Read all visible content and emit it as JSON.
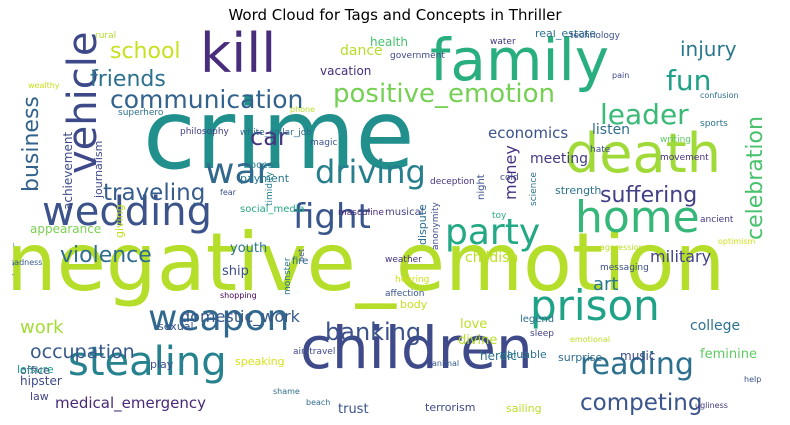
{
  "chart_data": {
    "type": "wordcloud",
    "title": "Word Cloud for Tags and Concepts in Thriller",
    "words": [
      {
        "text": "crime",
        "color": "#21908d"
      },
      {
        "text": "negative_emotion",
        "color": "#b5de2b"
      },
      {
        "text": "children",
        "color": "#3e4a89"
      },
      {
        "text": "family",
        "color": "#29af7f"
      },
      {
        "text": "death",
        "color": "#a0da39"
      },
      {
        "text": "kill",
        "color": "#472d7b"
      },
      {
        "text": "prison",
        "color": "#1fa287"
      },
      {
        "text": "home",
        "color": "#35b779"
      },
      {
        "text": "wedding",
        "color": "#3b528b"
      },
      {
        "text": "vehicle",
        "color": "#3e4989"
      },
      {
        "text": "stealing",
        "color": "#26828e"
      },
      {
        "text": "war",
        "color": "#31688e"
      },
      {
        "text": "weapon",
        "color": "#31688e"
      },
      {
        "text": "party",
        "color": "#22a884"
      },
      {
        "text": "fight",
        "color": "#39568c"
      },
      {
        "text": "driving",
        "color": "#277f8e"
      },
      {
        "text": "reading",
        "color": "#2d708e"
      },
      {
        "text": "positive_emotion",
        "color": "#75d054"
      },
      {
        "text": "fun",
        "color": "#1fa188"
      },
      {
        "text": "leader",
        "color": "#3aba76"
      },
      {
        "text": "communication",
        "color": "#33638d"
      },
      {
        "text": "competing",
        "color": "#3a548c"
      },
      {
        "text": "car",
        "color": "#46327e"
      },
      {
        "text": "traveling",
        "color": "#365d8d"
      },
      {
        "text": "suffering",
        "color": "#424086"
      },
      {
        "text": "banking",
        "color": "#3b528b"
      },
      {
        "text": "celebration",
        "color": "#4ac16d"
      },
      {
        "text": "school",
        "color": "#c8e020"
      },
      {
        "text": "friends",
        "color": "#2c728e"
      },
      {
        "text": "business",
        "color": "#33638d"
      },
      {
        "text": "injury",
        "color": "#2a788e"
      },
      {
        "text": "violence",
        "color": "#2e6d8e"
      },
      {
        "text": "occupation",
        "color": "#38598c"
      },
      {
        "text": "work",
        "color": "#a5db36"
      },
      {
        "text": "medical_emergency",
        "color": "#482878"
      },
      {
        "text": "money",
        "color": "#46337f"
      },
      {
        "text": "military",
        "color": "#414487"
      },
      {
        "text": "domestic_work",
        "color": "#38588c"
      },
      {
        "text": "dance",
        "color": "#b5de2b"
      },
      {
        "text": "economics",
        "color": "#3b518b"
      },
      {
        "text": "meeting",
        "color": "#443a83"
      },
      {
        "text": "listen",
        "color": "#2f6c8e"
      },
      {
        "text": "college",
        "color": "#2d718e"
      },
      {
        "text": "art",
        "color": "#2a778e"
      },
      {
        "text": "health",
        "color": "#48c16e"
      },
      {
        "text": "vacation",
        "color": "#472f7d"
      },
      {
        "text": "achievement",
        "color": "#3e4a89"
      },
      {
        "text": "appearance",
        "color": "#7ad151"
      },
      {
        "text": "youth",
        "color": "#2b748e"
      },
      {
        "text": "ship",
        "color": "#3c4f8a"
      },
      {
        "text": "childish",
        "color": "#bddf26"
      },
      {
        "text": "love",
        "color": "#bddf26"
      },
      {
        "text": "divine",
        "color": "#b8de29"
      },
      {
        "text": "heroic",
        "color": "#2c718e"
      },
      {
        "text": "feminine",
        "color": "#5ec962"
      },
      {
        "text": "trust",
        "color": "#3b528b"
      },
      {
        "text": "music",
        "color": "#3e4c8a"
      },
      {
        "text": "surprise",
        "color": "#2f6b8e"
      },
      {
        "text": "sexual",
        "color": "#39568c"
      },
      {
        "text": "office",
        "color": "#424186"
      },
      {
        "text": "leisure",
        "color": "#1fa088"
      },
      {
        "text": "hipster",
        "color": "#3e4a89"
      },
      {
        "text": "play",
        "color": "#3c508b"
      },
      {
        "text": "speaking",
        "color": "#d8e219"
      },
      {
        "text": "terrorism",
        "color": "#3e4989"
      },
      {
        "text": "sailing",
        "color": "#b8de29"
      },
      {
        "text": "law",
        "color": "#414487"
      },
      {
        "text": "journalism",
        "color": "#3e4a89"
      },
      {
        "text": "giving",
        "color": "#c2df23"
      },
      {
        "text": "strength",
        "color": "#2c738e"
      },
      {
        "text": "valuable",
        "color": "#2c738e"
      },
      {
        "text": "real_estate",
        "color": "#2d718e"
      },
      {
        "text": "technology",
        "color": "#3a548c"
      },
      {
        "text": "water",
        "color": "#453581"
      },
      {
        "text": "government",
        "color": "#3e4989"
      },
      {
        "text": "rural",
        "color": "#b2dd2d"
      },
      {
        "text": "wealthy",
        "color": "#cae11f"
      },
      {
        "text": "superhero",
        "color": "#2e6f8e"
      },
      {
        "text": "phone",
        "color": "#b8de29"
      },
      {
        "text": "white_collar_job",
        "color": "#2f6c8e"
      },
      {
        "text": "magic",
        "color": "#3a548c"
      },
      {
        "text": "hate",
        "color": "#3d4d8a"
      },
      {
        "text": "writing",
        "color": "#5ec962"
      },
      {
        "text": "sports",
        "color": "#2d718e"
      },
      {
        "text": "movement",
        "color": "#46307e"
      },
      {
        "text": "pain",
        "color": "#3f4889"
      },
      {
        "text": "confusion",
        "color": "#2e6e8e"
      },
      {
        "text": "philosophy",
        "color": "#424186"
      },
      {
        "text": "ocean",
        "color": "#25848e"
      },
      {
        "text": "payment",
        "color": "#2a778e"
      },
      {
        "text": "fear",
        "color": "#3b528b"
      },
      {
        "text": "social_media",
        "color": "#22a785"
      },
      {
        "text": "deception",
        "color": "#46337f"
      },
      {
        "text": "cold",
        "color": "#3e4a89"
      },
      {
        "text": "night",
        "color": "#3b518b"
      },
      {
        "text": "toy",
        "color": "#29af7f"
      },
      {
        "text": "science",
        "color": "#2b758e"
      },
      {
        "text": "masculine",
        "color": "#482576"
      },
      {
        "text": "musical",
        "color": "#433e85"
      },
      {
        "text": "timidity",
        "color": "#26818e"
      },
      {
        "text": "dispute",
        "color": "#2c728e"
      },
      {
        "text": "anonymity",
        "color": "#3d4e8a"
      },
      {
        "text": "ancient",
        "color": "#453781"
      },
      {
        "text": "aggression",
        "color": "#bddf26"
      },
      {
        "text": "optimism",
        "color": "#d0e11c"
      },
      {
        "text": "messaging",
        "color": "#3c4f8a"
      },
      {
        "text": "weather",
        "color": "#46307e"
      },
      {
        "text": "hearing",
        "color": "#d0e11c"
      },
      {
        "text": "affection",
        "color": "#3a548c"
      },
      {
        "text": "monster",
        "color": "#2c728e"
      },
      {
        "text": "pet",
        "color": "#3e4c8a"
      },
      {
        "text": "fire",
        "color": "#2e6d8e"
      },
      {
        "text": "shopping",
        "color": "#440154"
      },
      {
        "text": "body",
        "color": "#c8e020"
      },
      {
        "text": "shape_and_size",
        "color": "#2e6f8e"
      },
      {
        "text": "sadness",
        "color": "#365c8d"
      },
      {
        "text": "legend",
        "color": "#2c718e"
      },
      {
        "text": "sleep",
        "color": "#414487"
      },
      {
        "text": "emotional",
        "color": "#bddf26"
      },
      {
        "text": "air_travel",
        "color": "#3e4989"
      },
      {
        "text": "animal",
        "color": "#38598c"
      },
      {
        "text": "help",
        "color": "#3b528b"
      },
      {
        "text": "shame",
        "color": "#2e6f8e"
      },
      {
        "text": "beach",
        "color": "#2f6c8e"
      },
      {
        "text": "ugliness",
        "color": "#443a83"
      }
    ]
  }
}
